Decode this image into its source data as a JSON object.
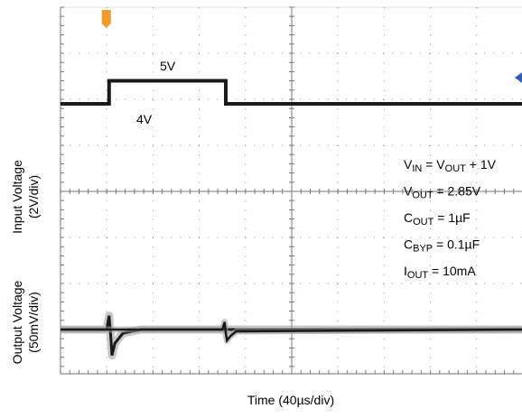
{
  "chart_data": {
    "type": "line",
    "title": "",
    "xlabel": "Time (40µs/div)",
    "x_unit": "µs",
    "x_per_div": 40,
    "xlim": [
      0,
      400
    ],
    "grid": true,
    "axes": [
      {
        "name": "input",
        "ylabel_lines": [
          "Input Voltage",
          "(2V/div)"
        ],
        "per_div": 2,
        "unit": "V"
      },
      {
        "name": "output",
        "ylabel_lines": [
          "Output Voltage",
          "(50mV/div)"
        ],
        "per_div": 0.05,
        "unit": "V"
      }
    ],
    "series": [
      {
        "name": "input",
        "x": [
          0,
          42,
          42,
          143,
          143,
          400
        ],
        "y": [
          4,
          4,
          5,
          5,
          4,
          4
        ]
      },
      {
        "name": "output",
        "x": [
          0,
          40,
          42,
          43.5,
          44.5,
          47,
          54,
          70,
          400
        ],
        "y": [
          0,
          0,
          0.015,
          -0.008,
          -0.028,
          -0.015,
          -0.004,
          0,
          0
        ],
        "x2": [
          0,
          140,
          142,
          143,
          144,
          147,
          152,
          400
        ],
        "y2": [
          0,
          0,
          0.008,
          -0.004,
          -0.012,
          -0.007,
          -0.002,
          0
        ]
      }
    ],
    "annotations": {
      "level_high": "5V",
      "level_low": "4V",
      "conditions": [
        {
          "pre": "V",
          "sub": "IN",
          "mid": " = V",
          "sub2": "OUT",
          "post": " + 1V"
        },
        {
          "pre": "V",
          "sub": "OUT",
          "post": " = 2.85V"
        },
        {
          "pre": "C",
          "sub": "OUT",
          "post": " = 1µF"
        },
        {
          "pre": "C",
          "sub": "BYP",
          "post": " = 0.1µF"
        },
        {
          "pre": "I",
          "sub": "OUT",
          "post": " = 10mA"
        }
      ]
    },
    "colors": {
      "trace": "#1a1a1a",
      "grid": "#8c8c8c",
      "trigger_marker": "#f29a2e",
      "level_marker": "#2f5fb0"
    }
  }
}
